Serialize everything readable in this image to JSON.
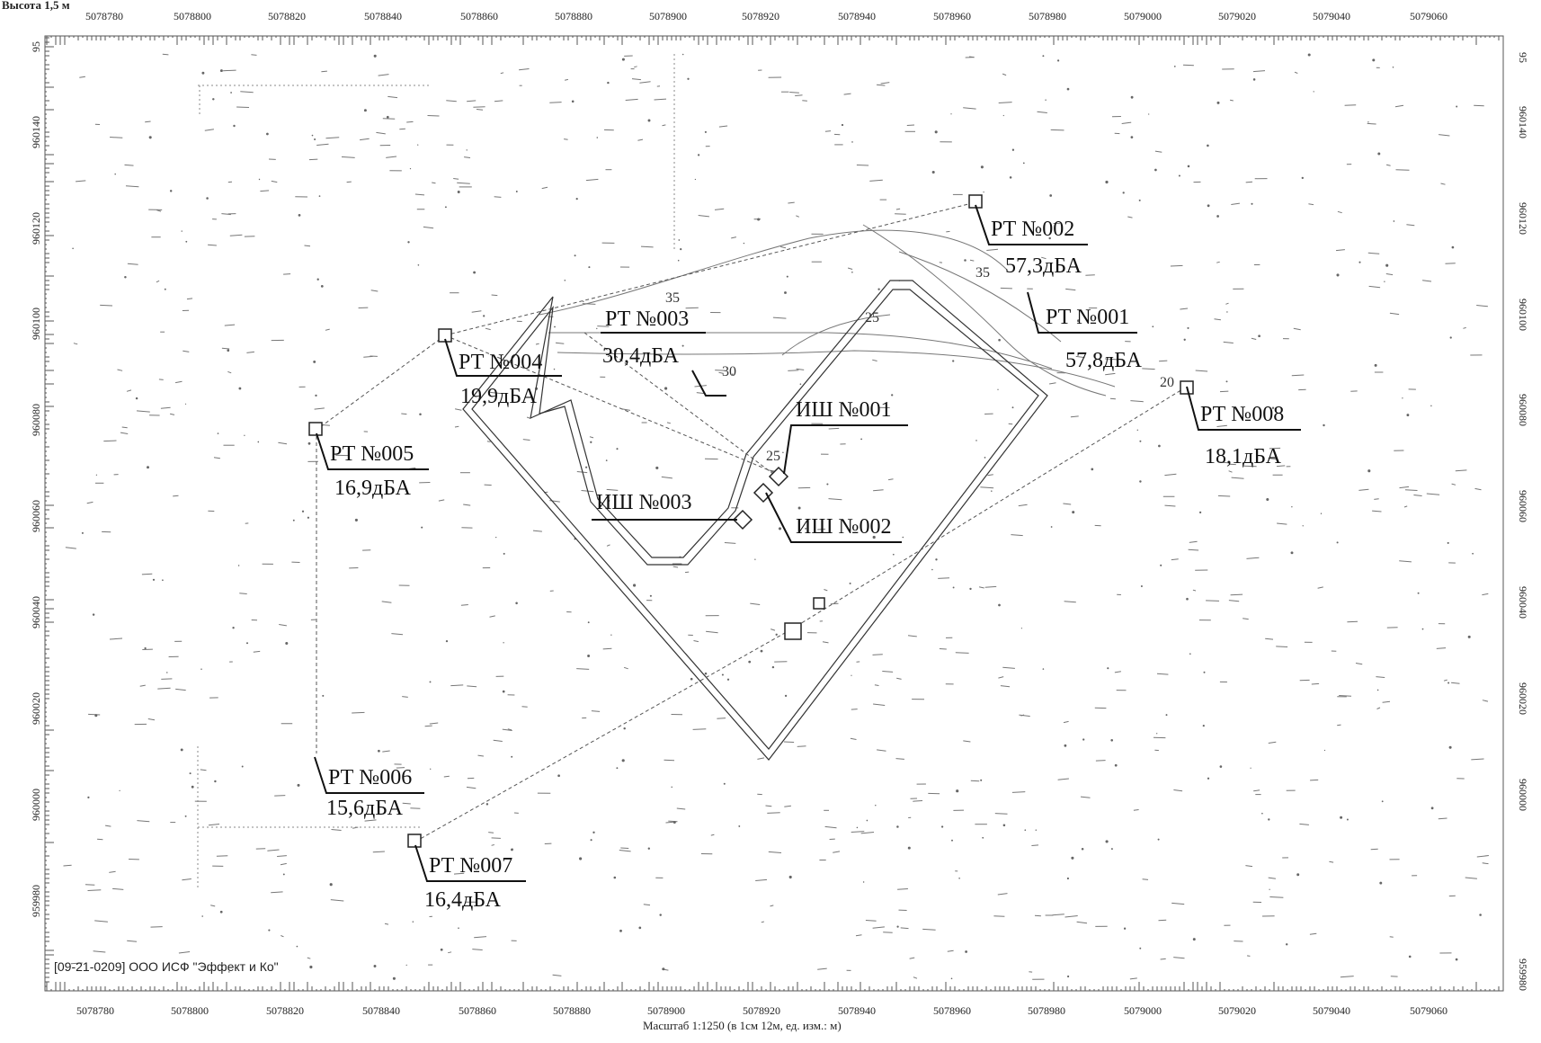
{
  "header": {
    "title": "Высота 1,5 м"
  },
  "axes": {
    "x_ticks_top": [
      "5078780",
      "5078800",
      "5078820",
      "5078840",
      "5078860",
      "5078880",
      "5078900",
      "5078920",
      "5078940",
      "5078960",
      "5078980",
      "5079000",
      "5079020",
      "5079040",
      "5079060"
    ],
    "x_ticks_bottom": [
      "5078780",
      "5078800",
      "5078820",
      "5078840",
      "5078860",
      "5078880",
      "5078900",
      "5078920",
      "5078940",
      "5078960",
      "5078980",
      "5079000",
      "5079020",
      "5079040",
      "5079060"
    ],
    "y_ticks": [
      "960140",
      "960120",
      "960100",
      "960080",
      "960060",
      "960040",
      "960020",
      "960000",
      "959980"
    ],
    "y_top_label": "95",
    "scale_text": "Масштаб 1:1250 (в 1см 12м, ед. изм.: м)"
  },
  "points": [
    {
      "id": "rt002",
      "name": "РТ №002",
      "value": "57,3дБА"
    },
    {
      "id": "rt001",
      "name": "РТ №001",
      "value": "57,8дБА"
    },
    {
      "id": "rt003",
      "name": "РТ №003",
      "value": "30,4дБА"
    },
    {
      "id": "rt004",
      "name": "РТ №004",
      "value": "19,9дБА"
    },
    {
      "id": "rt005",
      "name": "РТ №005",
      "value": "16,9дБА"
    },
    {
      "id": "rt006",
      "name": "РТ №006",
      "value": "15,6дБА"
    },
    {
      "id": "rt007",
      "name": "РТ №007",
      "value": "16,4дБА"
    },
    {
      "id": "rt008",
      "name": "РТ №008",
      "value": "18,1дБА"
    }
  ],
  "sources": [
    {
      "id": "ish001",
      "name": "ИШ №001"
    },
    {
      "id": "ish002",
      "name": "ИШ №002"
    },
    {
      "id": "ish003",
      "name": "ИШ №003"
    }
  ],
  "contours": [
    "35",
    "30",
    "25",
    "20",
    "35",
    "25"
  ],
  "footer": {
    "organization": "[09-21-0209] ООО ИСФ \"Эффект и Ко\""
  },
  "colors": {
    "line": "#333333",
    "light": "#888888",
    "bg": "#ffffff"
  }
}
